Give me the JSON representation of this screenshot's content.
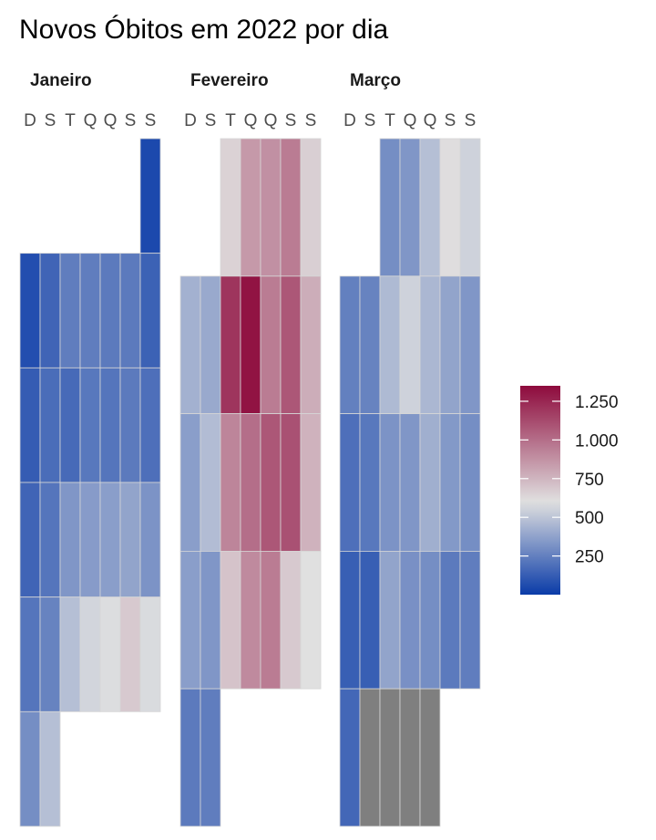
{
  "chart_data": {
    "type": "heatmap",
    "title": "Novos Óbitos em 2022 por dia",
    "day_labels": [
      "D",
      "S",
      "T",
      "Q",
      "Q",
      "S",
      "S"
    ],
    "color_scale": {
      "low": "#0a3ba8",
      "mid": "#e0e0e0",
      "high": "#8e0a3c",
      "na": "#7f7f7f",
      "domain": [
        0,
        1350
      ],
      "midpoint": 600,
      "legend_breaks": [
        250,
        500,
        750,
        1000,
        1250
      ],
      "legend_labels": [
        "250",
        "500",
        "750",
        "1.000",
        "1.250"
      ]
    },
    "months": [
      {
        "name": "Janeiro",
        "weeks": [
          [
            null,
            null,
            null,
            null,
            null,
            null,
            50
          ],
          [
            70,
            150,
            240,
            240,
            230,
            230,
            140
          ],
          [
            120,
            180,
            170,
            220,
            210,
            230,
            190
          ],
          [
            150,
            210,
            330,
            350,
            360,
            380,
            320
          ],
          [
            210,
            260,
            480,
            560,
            590,
            680,
            580
          ],
          [
            300,
            480,
            null,
            null,
            null,
            null,
            null
          ]
        ]
      },
      {
        "name": "Fevereiro",
        "weeks": [
          [
            null,
            null,
            650,
            850,
            880,
            950,
            660
          ],
          [
            430,
            400,
            1200,
            1320,
            950,
            1080,
            780
          ],
          [
            360,
            470,
            920,
            1000,
            1080,
            1100,
            760
          ],
          [
            360,
            330,
            700,
            900,
            950,
            680,
            600
          ],
          [
            230,
            240,
            null,
            null,
            null,
            null,
            null
          ]
        ]
      },
      {
        "name": "Março",
        "weeks": [
          [
            null,
            null,
            300,
            330,
            480,
            610,
            550
          ],
          [
            250,
            260,
            460,
            550,
            450,
            380,
            330
          ],
          [
            190,
            220,
            320,
            330,
            420,
            340,
            300
          ],
          [
            130,
            130,
            380,
            310,
            300,
            230,
            240
          ],
          [
            160,
            "NA",
            "NA",
            "NA",
            "NA",
            null,
            null
          ]
        ]
      }
    ]
  }
}
